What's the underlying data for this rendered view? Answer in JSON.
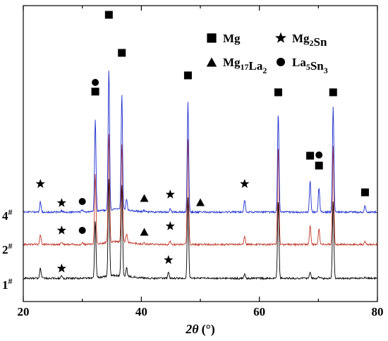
{
  "chart_data": {
    "type": "line",
    "xlabel": "2θ (°)",
    "xlabel_var": "2θ",
    "xlabel_unit": "(°)",
    "xlim": [
      20,
      80
    ],
    "xticks": [
      20,
      40,
      60,
      80
    ],
    "yticks_shown": false,
    "series": [
      {
        "name": "1",
        "label_main": "1",
        "label_sup": "#",
        "color": "#000000",
        "baseline": 0,
        "peaks": [
          [
            22.9,
            15
          ],
          [
            26.5,
            4
          ],
          [
            32.2,
            80
          ],
          [
            34.5,
            140
          ],
          [
            36.7,
            130
          ],
          [
            37.5,
            12
          ],
          [
            44.6,
            9
          ],
          [
            47.9,
            115
          ],
          [
            57.5,
            6
          ],
          [
            63.2,
            112
          ],
          [
            68.6,
            9
          ],
          [
            70.0,
            3
          ],
          [
            72.5,
            110
          ],
          [
            77.9,
            1
          ]
        ]
      },
      {
        "name": "2",
        "label_main": "2",
        "label_sup": "#",
        "color": "#c0392b",
        "baseline": 48,
        "peaks": [
          [
            22.9,
            14
          ],
          [
            26.5,
            3
          ],
          [
            30.0,
            3
          ],
          [
            32.2,
            100
          ],
          [
            34.5,
            155
          ],
          [
            36.7,
            140
          ],
          [
            37.5,
            12
          ],
          [
            40.5,
            2
          ],
          [
            44.9,
            4
          ],
          [
            47.9,
            150
          ],
          [
            57.5,
            11
          ],
          [
            63.2,
            140
          ],
          [
            68.6,
            28
          ],
          [
            70.1,
            22
          ],
          [
            72.5,
            140
          ],
          [
            77.9,
            5
          ]
        ]
      },
      {
        "name": "4",
        "label_main": "4",
        "label_sup": "#",
        "color": "#1f2fcf",
        "baseline": 94,
        "peaks": [
          [
            22.9,
            15
          ],
          [
            26.5,
            2
          ],
          [
            30.0,
            3
          ],
          [
            32.2,
            130
          ],
          [
            34.5,
            200
          ],
          [
            36.7,
            163
          ],
          [
            37.5,
            16
          ],
          [
            40.5,
            2
          ],
          [
            44.9,
            4
          ],
          [
            47.9,
            155
          ],
          [
            50.0,
            1
          ],
          [
            57.5,
            18
          ],
          [
            63.2,
            140
          ],
          [
            68.6,
            44
          ],
          [
            70.1,
            35
          ],
          [
            72.5,
            150
          ],
          [
            77.9,
            9
          ]
        ]
      }
    ],
    "legend": {
      "position": "top-right",
      "items": [
        {
          "marker": "square",
          "label": "Mg",
          "formula": [
            [
              "Mg",
              ""
            ]
          ]
        },
        {
          "marker": "star",
          "label": "Mg2Sn",
          "formula": [
            [
              "Mg",
              "2"
            ],
            [
              "Sn",
              ""
            ]
          ]
        },
        {
          "marker": "triangle",
          "label": "Mg17La2",
          "formula": [
            [
              "Mg",
              "17"
            ],
            [
              "La",
              "2"
            ]
          ]
        },
        {
          "marker": "circle",
          "label": "La5Sn3",
          "formula": [
            [
              "La",
              "5"
            ],
            [
              "Sn",
              "3"
            ]
          ]
        }
      ]
    },
    "annotations": [
      {
        "marker": "star",
        "x": 22.9,
        "series": "4",
        "y": 40
      },
      {
        "marker": "star",
        "x": 26.5,
        "series": "4",
        "y": 13
      },
      {
        "marker": "circle",
        "x": 30.0,
        "series": "4",
        "y": 15
      },
      {
        "marker": "circle",
        "x": 32.2,
        "series": "4",
        "y": 184
      },
      {
        "marker": "square",
        "x": 32.2,
        "series": "4",
        "y": 171
      },
      {
        "marker": "square",
        "x": 34.5,
        "series": "4",
        "y": 280
      },
      {
        "marker": "square",
        "x": 36.7,
        "series": "4",
        "y": 226
      },
      {
        "marker": "triangle",
        "x": 40.5,
        "series": "4",
        "y": 20
      },
      {
        "marker": "star",
        "x": 44.9,
        "series": "4",
        "y": 25
      },
      {
        "marker": "triangle",
        "x": 50.0,
        "series": "4",
        "y": 14
      },
      {
        "marker": "square",
        "x": 47.9,
        "series": "4",
        "y": 194
      },
      {
        "marker": "star",
        "x": 57.5,
        "series": "4",
        "y": 40
      },
      {
        "marker": "square",
        "x": 63.2,
        "series": "4",
        "y": 170
      },
      {
        "marker": "square",
        "x": 68.6,
        "series": "4",
        "y": 80
      },
      {
        "marker": "circle",
        "x": 70.1,
        "series": "4",
        "y": 81
      },
      {
        "marker": "square",
        "x": 70.1,
        "series": "4",
        "y": 66
      },
      {
        "marker": "square",
        "x": 72.5,
        "series": "4",
        "y": 170
      },
      {
        "marker": "square",
        "x": 77.9,
        "series": "4",
        "y": 28
      },
      {
        "marker": "star",
        "x": 26.5,
        "series": "2",
        "y": 20
      },
      {
        "marker": "circle",
        "x": 30.0,
        "series": "2",
        "y": 20
      },
      {
        "marker": "triangle",
        "x": 40.5,
        "series": "2",
        "y": 18
      },
      {
        "marker": "star",
        "x": 44.9,
        "series": "2",
        "y": 26
      },
      {
        "marker": "star",
        "x": 26.5,
        "series": "1",
        "y": 14
      },
      {
        "marker": "star",
        "x": 44.6,
        "series": "1",
        "y": 26
      }
    ],
    "grid": false
  }
}
